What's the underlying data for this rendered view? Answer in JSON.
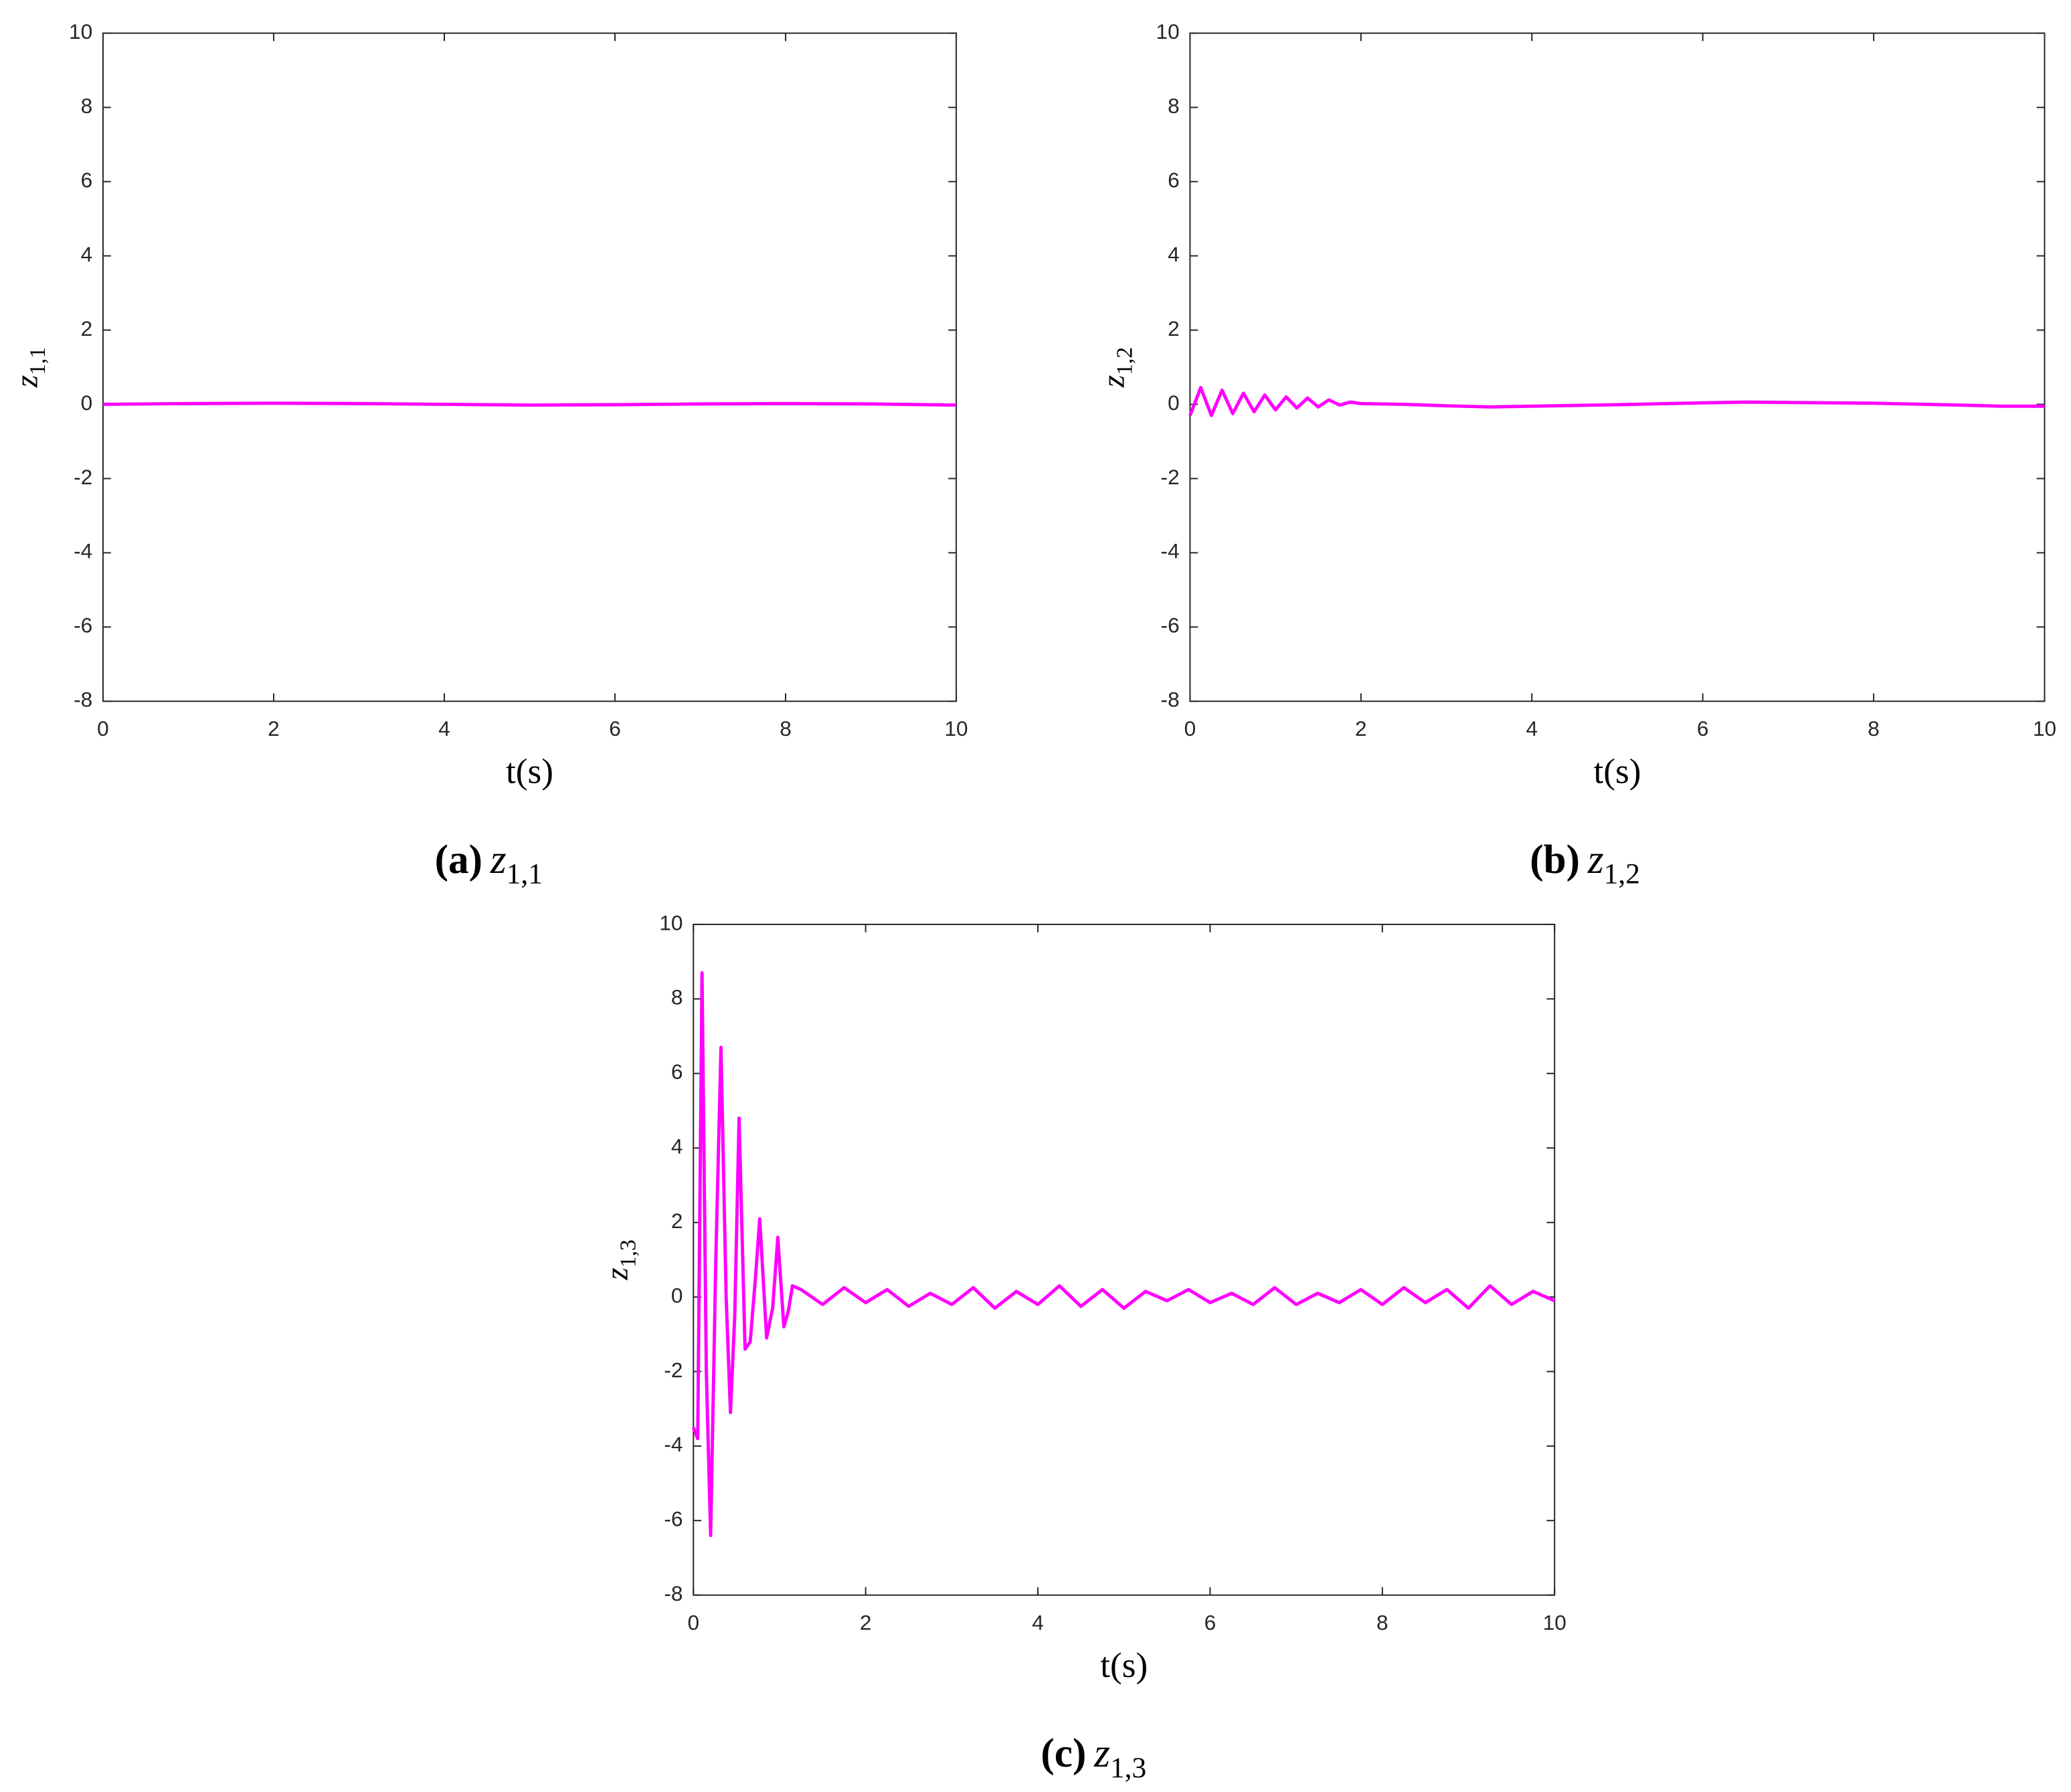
{
  "chart_data": [
    {
      "type": "line",
      "x_label": "t(s)",
      "y_label": "z",
      "y_label_subscript": "1,1",
      "caption_label": "(a)",
      "caption_variable": "z",
      "caption_subscript": "1,1",
      "xlim": [
        0,
        10
      ],
      "ylim": [
        -8,
        10
      ],
      "xticks": [
        0,
        2,
        4,
        6,
        8,
        10
      ],
      "yticks": [
        -8,
        -6,
        -4,
        -2,
        0,
        2,
        4,
        6,
        8,
        10
      ],
      "x": [
        0,
        1,
        2,
        3,
        4,
        5,
        6,
        7,
        8,
        9,
        10
      ],
      "series": [
        {
          "color": "#ff00ff",
          "values": [
            0,
            0.02,
            0.03,
            0.02,
            0,
            -0.02,
            -0.01,
            0.01,
            0.02,
            0.01,
            -0.02
          ]
        }
      ]
    },
    {
      "type": "line",
      "x_label": "t(s)",
      "y_label": "z",
      "y_label_subscript": "1,2",
      "caption_label": "(b)",
      "caption_variable": "z",
      "caption_subscript": "1,2",
      "xlim": [
        0,
        10
      ],
      "ylim": [
        -8,
        10
      ],
      "xticks": [
        0,
        2,
        4,
        6,
        8,
        10
      ],
      "yticks": [
        -8,
        -6,
        -4,
        -2,
        0,
        2,
        4,
        6,
        8,
        10
      ],
      "x": [
        0,
        0.125,
        0.25,
        0.375,
        0.5,
        0.625,
        0.75,
        0.875,
        1,
        1.125,
        1.25,
        1.375,
        1.5,
        1.625,
        1.75,
        1.875,
        2,
        2.5,
        3,
        3.5,
        4,
        5,
        6,
        6.5,
        7,
        8,
        9,
        9.5,
        10
      ],
      "series": [
        {
          "color": "#ff00ff",
          "values": [
            -0.3,
            0.45,
            -0.3,
            0.38,
            -0.25,
            0.3,
            -0.2,
            0.25,
            -0.15,
            0.2,
            -0.1,
            0.17,
            -0.07,
            0.12,
            -0.02,
            0.06,
            0.02,
            0,
            -0.04,
            -0.07,
            -0.05,
            -0.01,
            0.04,
            0.06,
            0.05,
            0.03,
            -0.02,
            -0.05,
            -0.05
          ]
        }
      ]
    },
    {
      "type": "line",
      "x_label": "t(s)",
      "y_label": "z",
      "y_label_subscript": "1,3",
      "caption_label": "(c)",
      "caption_variable": "z",
      "caption_subscript": "1,3",
      "xlim": [
        0,
        10
      ],
      "ylim": [
        -8,
        10
      ],
      "xticks": [
        0,
        2,
        4,
        6,
        8,
        10
      ],
      "yticks": [
        -8,
        -6,
        -4,
        -2,
        0,
        2,
        4,
        6,
        8,
        10
      ],
      "x": [
        0,
        0.05,
        0.1,
        0.15,
        0.2,
        0.26,
        0.32,
        0.38,
        0.43,
        0.48,
        0.53,
        0.6,
        0.66,
        0.72,
        0.77,
        0.85,
        0.92,
        0.98,
        1.05,
        1.1,
        1.15,
        1.25,
        1.5,
        1.75,
        2,
        2.25,
        2.5,
        2.75,
        3,
        3.25,
        3.5,
        3.75,
        4,
        4.25,
        4.5,
        4.75,
        5,
        5.25,
        5.5,
        5.75,
        6,
        6.25,
        6.5,
        6.75,
        7,
        7.25,
        7.5,
        7.75,
        8,
        8.25,
        8.5,
        8.75,
        9,
        9.25,
        9.5,
        9.75,
        10
      ],
      "series": [
        {
          "color": "#ff00ff",
          "values": [
            -3.5,
            -3.8,
            8.7,
            -2,
            -6.4,
            1,
            6.7,
            0,
            -3.1,
            -0.5,
            4.8,
            -1.4,
            -1.2,
            0.5,
            2.1,
            -1.1,
            -0.3,
            1.6,
            -0.8,
            -0.4,
            0.3,
            0.2,
            -0.2,
            0.25,
            -0.15,
            0.2,
            -0.25,
            0.1,
            -0.2,
            0.25,
            -0.3,
            0.15,
            -0.2,
            0.3,
            -0.25,
            0.2,
            -0.3,
            0.15,
            -0.1,
            0.2,
            -0.15,
            0.1,
            -0.2,
            0.25,
            -0.2,
            0.1,
            -0.15,
            0.2,
            -0.2,
            0.25,
            -0.15,
            0.2,
            -0.3,
            0.3,
            -0.2,
            0.15,
            -0.1
          ]
        }
      ]
    }
  ]
}
